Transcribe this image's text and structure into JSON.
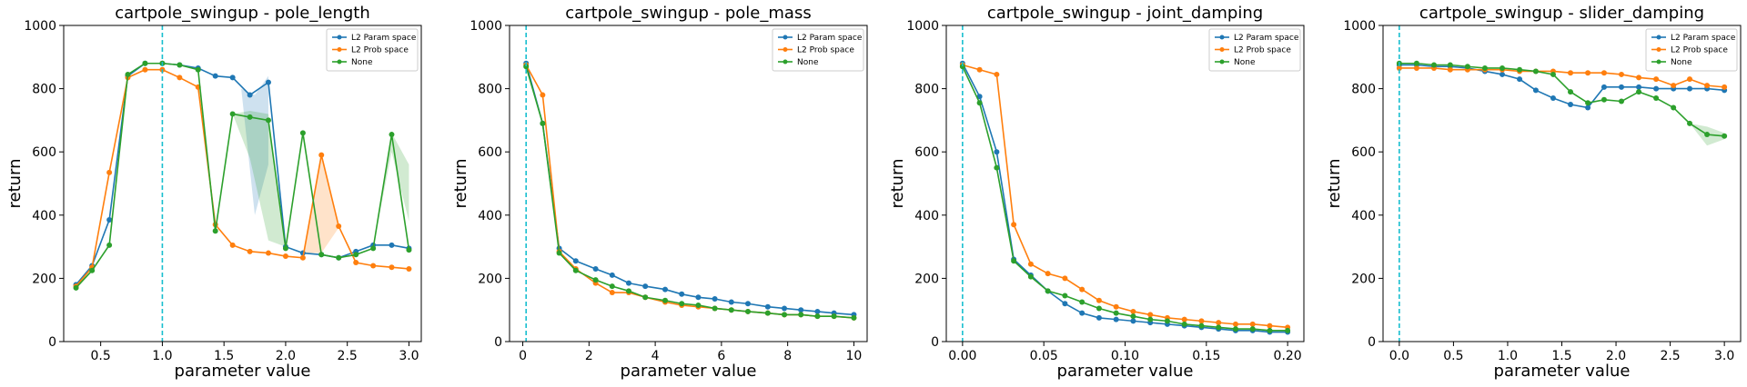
{
  "colors": {
    "L2 Param space": "#1f77b4",
    "L2 Prob space": "#ff7f0e",
    "None": "#2ca02c",
    "reference_line": "#17becf"
  },
  "chart_data": [
    {
      "type": "line",
      "title": "cartpole_swingup - pole_length",
      "xlabel": "parameter value",
      "ylabel": "return",
      "xlim": [
        0.2,
        3.1
      ],
      "ylim": [
        0,
        1000
      ],
      "xticks": [
        0.5,
        1.0,
        1.5,
        2.0,
        2.5,
        3.0
      ],
      "xtick_labels": [
        "0.5",
        "1.0",
        "1.5",
        "2.0",
        "2.5",
        "3.0"
      ],
      "yticks": [
        0,
        200,
        400,
        600,
        800,
        1000
      ],
      "ytick_labels": [
        "0",
        "200",
        "400",
        "600",
        "800",
        "1000"
      ],
      "reference_x": 1.0,
      "legend_position": "top-right",
      "x": [
        0.3,
        0.43,
        0.57,
        0.72,
        0.86,
        1.0,
        1.14,
        1.29,
        1.43,
        1.57,
        1.71,
        1.86,
        2.0,
        2.14,
        2.29,
        2.43,
        2.57,
        2.71,
        2.86,
        3.0
      ],
      "series": [
        {
          "name": "L2 Param space",
          "values": [
            180,
            240,
            385,
            840,
            880,
            880,
            875,
            865,
            840,
            835,
            780,
            820,
            300,
            280,
            275,
            265,
            285,
            305,
            305,
            295
          ]
        },
        {
          "name": "L2 Prob space",
          "values": [
            175,
            235,
            535,
            835,
            860,
            860,
            835,
            805,
            370,
            305,
            285,
            280,
            270,
            265,
            590,
            365,
            250,
            240,
            235,
            230
          ]
        },
        {
          "name": "None",
          "values": [
            170,
            225,
            305,
            845,
            880,
            880,
            875,
            860,
            350,
            720,
            710,
            700,
            295,
            660,
            275,
            265,
            275,
            295,
            655,
            290
          ]
        }
      ],
      "bands": [
        {
          "series": "L2 Param space",
          "x": [
            1.64,
            1.75,
            1.86
          ],
          "low": [
            800,
            400,
            560
          ],
          "high": [
            800,
            780,
            840
          ]
        },
        {
          "series": "L2 Prob space",
          "x": [
            2.14,
            2.29,
            2.43
          ],
          "low": [
            280,
            280,
            360
          ],
          "high": [
            280,
            600,
            370
          ]
        },
        {
          "series": "None",
          "x": [
            1.57,
            1.71,
            1.86,
            2.0
          ],
          "low": [
            720,
            580,
            320,
            300
          ],
          "high": [
            720,
            730,
            720,
            300
          ]
        },
        {
          "series": "None",
          "x": [
            2.71,
            2.86,
            3.0
          ],
          "low": [
            300,
            600,
            380
          ],
          "high": [
            300,
            660,
            560
          ]
        }
      ]
    },
    {
      "type": "line",
      "title": "cartpole_swingup - pole_mass",
      "xlabel": "parameter value",
      "ylabel": "return",
      "xlim": [
        -0.4,
        10.4
      ],
      "ylim": [
        0,
        1000
      ],
      "xticks": [
        0,
        2,
        4,
        6,
        8,
        10
      ],
      "xtick_labels": [
        "0",
        "2",
        "4",
        "6",
        "8",
        "10"
      ],
      "yticks": [
        0,
        200,
        400,
        600,
        800,
        1000
      ],
      "ytick_labels": [
        "0",
        "200",
        "400",
        "600",
        "800",
        "1000"
      ],
      "reference_x": 0.1,
      "legend_position": "top-right",
      "x": [
        0.1,
        0.6,
        1.1,
        1.6,
        2.2,
        2.7,
        3.2,
        3.7,
        4.3,
        4.8,
        5.3,
        5.8,
        6.3,
        6.8,
        7.4,
        7.9,
        8.4,
        8.9,
        9.4,
        10.0
      ],
      "series": [
        {
          "name": "L2 Param space",
          "values": [
            880,
            690,
            295,
            255,
            230,
            210,
            185,
            175,
            165,
            150,
            140,
            135,
            125,
            120,
            110,
            105,
            100,
            95,
            90,
            85
          ]
        },
        {
          "name": "L2 Prob space",
          "values": [
            875,
            780,
            285,
            230,
            185,
            155,
            155,
            140,
            125,
            115,
            110,
            105,
            100,
            95,
            90,
            85,
            85,
            80,
            80,
            75
          ]
        },
        {
          "name": "None",
          "values": [
            870,
            690,
            280,
            225,
            195,
            175,
            160,
            140,
            130,
            120,
            115,
            105,
            100,
            95,
            90,
            85,
            85,
            80,
            80,
            75
          ]
        }
      ],
      "bands": []
    },
    {
      "type": "line",
      "title": "cartpole_swingup - joint_damping",
      "xlabel": "parameter value",
      "ylabel": "return",
      "xlim": [
        -0.01,
        0.21
      ],
      "ylim": [
        0,
        1000
      ],
      "xticks": [
        0.0,
        0.05,
        0.1,
        0.15,
        0.2
      ],
      "xtick_labels": [
        "0.00",
        "0.05",
        "0.10",
        "0.15",
        "0.20"
      ],
      "yticks": [
        0,
        200,
        400,
        600,
        800,
        1000
      ],
      "ytick_labels": [
        "0",
        "200",
        "400",
        "600",
        "800",
        "1000"
      ],
      "reference_x": 0.0,
      "legend_position": "top-right",
      "x": [
        0.0,
        0.0105,
        0.021,
        0.0315,
        0.042,
        0.0525,
        0.063,
        0.0735,
        0.084,
        0.0945,
        0.105,
        0.1155,
        0.126,
        0.1365,
        0.147,
        0.1575,
        0.168,
        0.1785,
        0.189,
        0.2
      ],
      "series": [
        {
          "name": "L2 Param space",
          "values": [
            880,
            775,
            600,
            260,
            210,
            160,
            120,
            90,
            75,
            70,
            65,
            60,
            55,
            50,
            45,
            40,
            35,
            35,
            30,
            30
          ]
        },
        {
          "name": "L2 Prob space",
          "values": [
            875,
            860,
            845,
            370,
            245,
            215,
            200,
            165,
            130,
            110,
            95,
            85,
            75,
            70,
            65,
            60,
            55,
            55,
            50,
            45
          ]
        },
        {
          "name": "None",
          "values": [
            870,
            755,
            550,
            255,
            205,
            160,
            145,
            125,
            105,
            90,
            80,
            70,
            65,
            55,
            50,
            45,
            40,
            40,
            35,
            35
          ]
        }
      ],
      "bands": []
    },
    {
      "type": "line",
      "title": "cartpole_swingup - slider_damping",
      "xlabel": "parameter value",
      "ylabel": "return",
      "xlim": [
        -0.15,
        3.15
      ],
      "ylim": [
        0,
        1000
      ],
      "xticks": [
        0.0,
        0.5,
        1.0,
        1.5,
        2.0,
        2.5,
        3.0
      ],
      "xtick_labels": [
        "0.0",
        "0.5",
        "1.0",
        "1.5",
        "2.0",
        "2.5",
        "3.0"
      ],
      "yticks": [
        0,
        200,
        400,
        600,
        800,
        1000
      ],
      "ytick_labels": [
        "0",
        "200",
        "400",
        "600",
        "800",
        "1000"
      ],
      "reference_x": 0.0,
      "legend_position": "top-right",
      "x": [
        0.0,
        0.16,
        0.32,
        0.47,
        0.63,
        0.79,
        0.95,
        1.11,
        1.26,
        1.42,
        1.58,
        1.74,
        1.89,
        2.05,
        2.21,
        2.37,
        2.53,
        2.68,
        2.84,
        3.0
      ],
      "series": [
        {
          "name": "L2 Param space",
          "values": [
            875,
            875,
            870,
            870,
            865,
            855,
            845,
            830,
            795,
            770,
            750,
            740,
            805,
            805,
            805,
            800,
            800,
            800,
            800,
            795
          ]
        },
        {
          "name": "L2 Prob space",
          "values": [
            865,
            865,
            865,
            860,
            860,
            860,
            860,
            855,
            855,
            855,
            850,
            850,
            850,
            845,
            835,
            830,
            810,
            830,
            810,
            805
          ]
        },
        {
          "name": "None",
          "values": [
            880,
            880,
            875,
            875,
            870,
            865,
            865,
            860,
            855,
            845,
            790,
            755,
            765,
            760,
            790,
            770,
            740,
            690,
            655,
            650
          ]
        }
      ],
      "bands": [
        {
          "series": "None",
          "x": [
            2.68,
            2.84,
            3.0
          ],
          "low": [
            690,
            620,
            640
          ],
          "high": [
            690,
            680,
            660
          ]
        }
      ]
    }
  ]
}
